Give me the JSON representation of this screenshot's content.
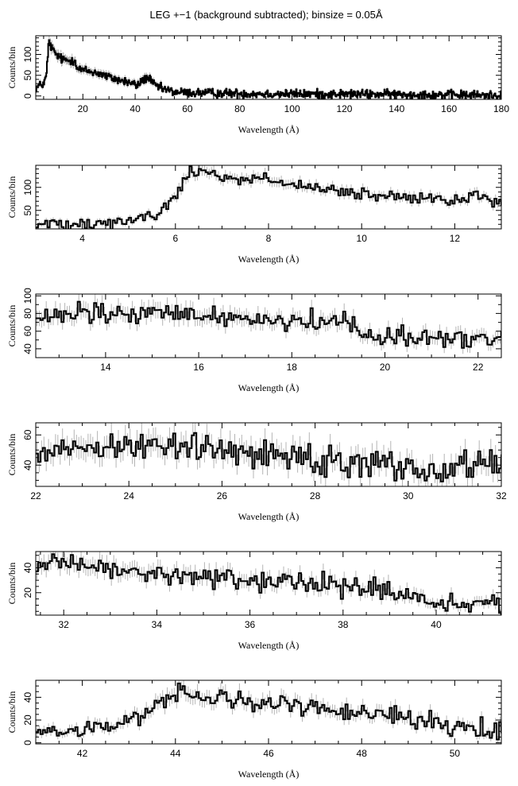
{
  "figure": {
    "title": "LEG +−1 (background subtracted); binsize = 0.05Å"
  },
  "chart_data": [
    {
      "type": "line",
      "xlabel": "Wavelength (Å)",
      "ylabel": "Counts/bin",
      "xlim": [
        2,
        180
      ],
      "ylim": [
        -8,
        145
      ],
      "xticks": [
        20,
        40,
        60,
        80,
        100,
        120,
        140,
        160,
        180
      ],
      "yticks": [
        0,
        50,
        100
      ],
      "yticks_minor": [
        0,
        10,
        20,
        30,
        40,
        50,
        60,
        70,
        80,
        90,
        100,
        110,
        120,
        130,
        140
      ],
      "grid": false,
      "step_x": 0.25,
      "noise": 9,
      "profile": [
        [
          2,
          20
        ],
        [
          5,
          30
        ],
        [
          6,
          45
        ],
        [
          7,
          130
        ],
        [
          9,
          105
        ],
        [
          12,
          88
        ],
        [
          15,
          85
        ],
        [
          17,
          88
        ],
        [
          18,
          65
        ],
        [
          22,
          60
        ],
        [
          26,
          55
        ],
        [
          30,
          45
        ],
        [
          34,
          38
        ],
        [
          38,
          32
        ],
        [
          41,
          25
        ],
        [
          43,
          40
        ],
        [
          45,
          45
        ],
        [
          47,
          28
        ],
        [
          50,
          18
        ],
        [
          55,
          10
        ],
        [
          60,
          8
        ],
        [
          70,
          7
        ],
        [
          80,
          6
        ],
        [
          100,
          5
        ],
        [
          140,
          4
        ],
        [
          175,
          2
        ],
        [
          180,
          2
        ]
      ]
    },
    {
      "type": "line",
      "xlabel": "Wavelength (Å)",
      "ylabel": "Counts/bin",
      "xlim": [
        3,
        13
      ],
      "ylim": [
        10,
        148
      ],
      "xticks": [
        4,
        6,
        8,
        10,
        12
      ],
      "yticks": [
        50,
        100
      ],
      "yticks_minor": [
        20,
        30,
        40,
        50,
        60,
        70,
        80,
        90,
        100,
        110,
        120,
        130,
        140
      ],
      "grid": false,
      "step_x": 0.05,
      "noise": 12,
      "profile": [
        [
          3,
          18
        ],
        [
          3.5,
          22
        ],
        [
          4,
          25
        ],
        [
          4.5,
          25
        ],
        [
          5,
          28
        ],
        [
          5.5,
          38
        ],
        [
          5.8,
          55
        ],
        [
          6.05,
          88
        ],
        [
          6.2,
          120
        ],
        [
          6.5,
          140
        ],
        [
          7,
          125
        ],
        [
          7.5,
          115
        ],
        [
          8,
          120
        ],
        [
          8.5,
          105
        ],
        [
          9,
          95
        ],
        [
          10,
          85
        ],
        [
          11,
          75
        ],
        [
          12,
          72
        ],
        [
          12.5,
          80
        ],
        [
          13,
          70
        ]
      ]
    },
    {
      "type": "line",
      "xlabel": "Wavelength (Å)",
      "ylabel": "Counts/bin",
      "xlim": [
        12.5,
        22.5
      ],
      "ylim": [
        30,
        102
      ],
      "xticks": [
        14,
        16,
        18,
        20,
        22
      ],
      "yticks": [
        40,
        60,
        80,
        100
      ],
      "yticks_minor": [
        30,
        40,
        50,
        60,
        70,
        80,
        90,
        100
      ],
      "grid": false,
      "step_x": 0.05,
      "noise": 10,
      "profile": [
        [
          12.5,
          72
        ],
        [
          13.5,
          80
        ],
        [
          14.3,
          78
        ],
        [
          15,
          80
        ],
        [
          16,
          78
        ],
        [
          17,
          75
        ],
        [
          18,
          72
        ],
        [
          19,
          70
        ],
        [
          19.3,
          72
        ],
        [
          19.5,
          58
        ],
        [
          20,
          55
        ],
        [
          21,
          52
        ],
        [
          22,
          50
        ],
        [
          22.5,
          55
        ]
      ]
    },
    {
      "type": "line",
      "xlabel": "Wavelength (Å)",
      "ylabel": "Counts/bin",
      "xlim": [
        22,
        32
      ],
      "ylim": [
        26,
        68
      ],
      "xticks": [
        22,
        24,
        26,
        28,
        30,
        32
      ],
      "yticks": [
        40,
        60
      ],
      "yticks_minor": [
        30,
        35,
        40,
        45,
        50,
        55,
        60,
        65
      ],
      "grid": false,
      "step_x": 0.05,
      "noise": 8,
      "profile": [
        [
          22,
          50
        ],
        [
          23,
          52
        ],
        [
          24,
          54
        ],
        [
          25,
          52
        ],
        [
          26,
          50
        ],
        [
          27,
          48
        ],
        [
          28,
          45
        ],
        [
          29,
          42
        ],
        [
          30,
          40
        ],
        [
          30.5,
          36
        ],
        [
          31,
          38
        ],
        [
          32,
          42
        ]
      ]
    },
    {
      "type": "line",
      "xlabel": "Wavelength (Å)",
      "ylabel": "Counts/bin",
      "xlim": [
        31.4,
        41.4
      ],
      "ylim": [
        2,
        53
      ],
      "xticks": [
        32,
        34,
        36,
        38,
        40
      ],
      "yticks": [
        20,
        40
      ],
      "yticks_minor": [
        5,
        10,
        15,
        20,
        25,
        30,
        35,
        40,
        45,
        50
      ],
      "grid": false,
      "step_x": 0.05,
      "noise": 7,
      "profile": [
        [
          31.4,
          43
        ],
        [
          32,
          42
        ],
        [
          33,
          38
        ],
        [
          34,
          35
        ],
        [
          35,
          32
        ],
        [
          36,
          30
        ],
        [
          37,
          28
        ],
        [
          38,
          26
        ],
        [
          39,
          20
        ],
        [
          40,
          12
        ],
        [
          41,
          8
        ],
        [
          41.4,
          10
        ]
      ]
    },
    {
      "type": "line",
      "xlabel": "Wavelength (Å)",
      "ylabel": "Counts/bin",
      "xlim": [
        41,
        51
      ],
      "ylim": [
        -1,
        55
      ],
      "xticks": [
        42,
        44,
        46,
        48,
        50
      ],
      "yticks": [
        0,
        20,
        40
      ],
      "yticks_minor": [
        0,
        5,
        10,
        15,
        20,
        25,
        30,
        35,
        40,
        45,
        50
      ],
      "grid": false,
      "step_x": 0.05,
      "noise": 7,
      "profile": [
        [
          41,
          10
        ],
        [
          42,
          10
        ],
        [
          42.5,
          15
        ],
        [
          43,
          20
        ],
        [
          43.5,
          28
        ],
        [
          43.8,
          40
        ],
        [
          44,
          45
        ],
        [
          45,
          38
        ],
        [
          46,
          34
        ],
        [
          47,
          32
        ],
        [
          48,
          28
        ],
        [
          49,
          22
        ],
        [
          50,
          16
        ],
        [
          51,
          10
        ]
      ]
    }
  ]
}
